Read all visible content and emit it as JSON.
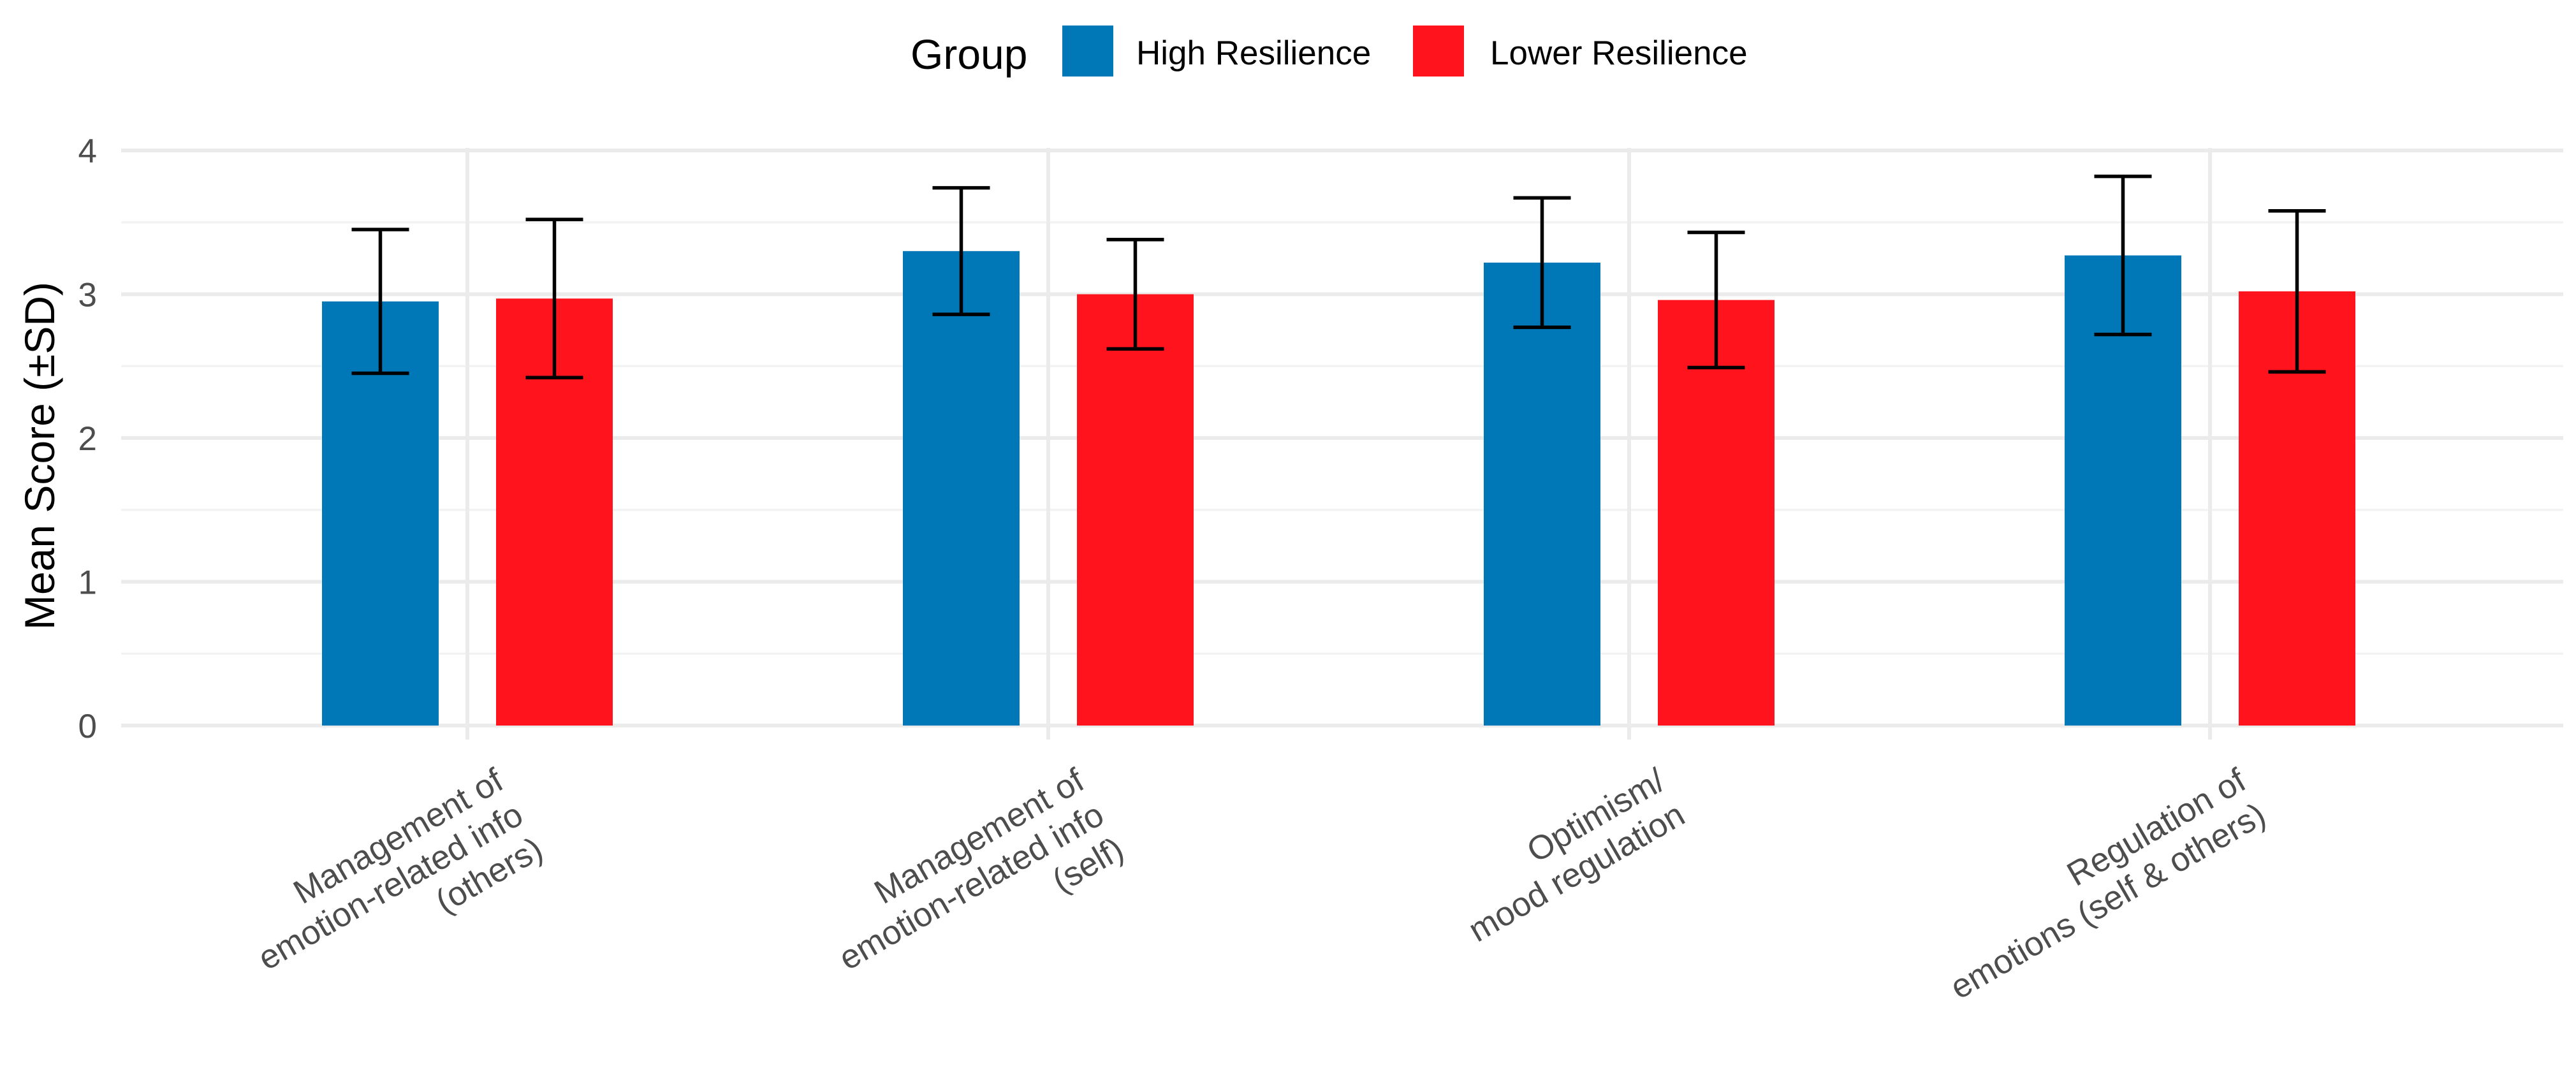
{
  "chart_data": {
    "type": "bar",
    "title": "",
    "xlabel": "",
    "ylabel": "Mean Score (±SD)",
    "ylim": [
      0,
      4
    ],
    "yticks": [
      0,
      1,
      2,
      3,
      4
    ],
    "grid": true,
    "legend": {
      "title": "Group",
      "position": "top"
    },
    "categories": [
      [
        "Management of",
        "emotion-related info",
        "(others)"
      ],
      [
        "Management of",
        "emotion-related info",
        "(self)"
      ],
      [
        "Optimism/",
        "mood regulation"
      ],
      [
        "Regulation of",
        "emotions (self & others)"
      ]
    ],
    "series": [
      {
        "name": "High Resilience",
        "color": "#0077b6",
        "values": [
          2.95,
          3.3,
          3.22,
          3.27
        ],
        "sd": [
          0.5,
          0.44,
          0.45,
          0.55
        ]
      },
      {
        "name": "Lower Resilience",
        "color": "#ff141e",
        "values": [
          2.97,
          3.0,
          2.96,
          3.02
        ],
        "sd": [
          0.55,
          0.38,
          0.47,
          0.56
        ]
      }
    ]
  }
}
